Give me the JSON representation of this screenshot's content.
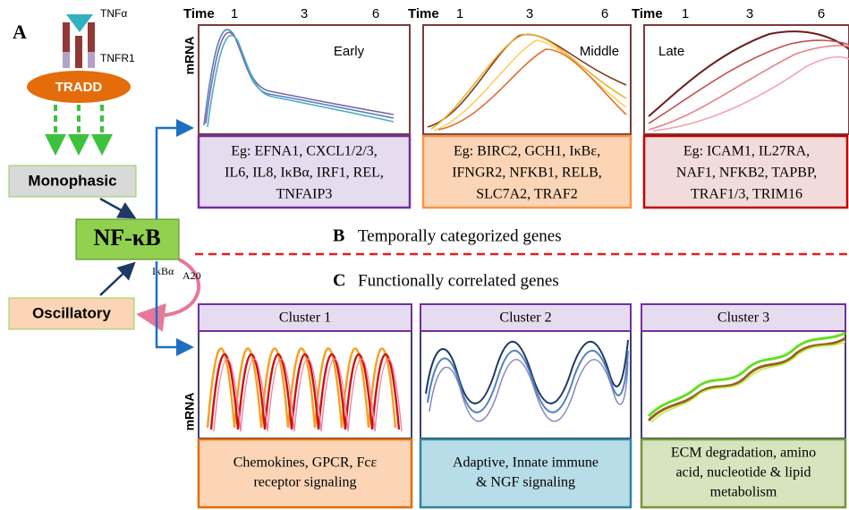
{
  "panel_a": {
    "label": "A",
    "ligand": "TNFα",
    "receptor": "TNFR1",
    "adaptor": "TRADD",
    "monophasic": "Monophasic",
    "nfkb": "NF-κB",
    "oscillatory": "Oscillatory",
    "feedback": "IκBα",
    "feedback_sub": "A20"
  },
  "temporal": {
    "label": "B",
    "title": "Temporally categorized genes",
    "time_label": "Time",
    "time_ticks": [
      1,
      3,
      6
    ],
    "y_label": "mRNA",
    "groups": [
      {
        "name": "Early",
        "genes": [
          "Eg: EFNA1, CXCL1/2/3,",
          "IL6, IL8, IκBα, IRF1, REL,",
          "TNFAIP3"
        ]
      },
      {
        "name": "Middle",
        "genes": [
          "Eg: BIRC2, GCH1, IκBε,",
          "IFNGR2, NFKB1, RELB,",
          "SLC7A2, TRAF2"
        ]
      },
      {
        "name": "Late",
        "genes": [
          "Eg: ICAM1, IL27RA,",
          "NAF1, NFKB2, TAPBP,",
          "TRAF1/3, TRIM16"
        ]
      }
    ]
  },
  "functional": {
    "label": "C",
    "title": "Functionally correlated genes",
    "y_label": "mRNA",
    "clusters": [
      {
        "name": "Cluster 1",
        "description": [
          "Chemokines, GPCR, Fcε",
          "receptor signaling"
        ]
      },
      {
        "name": "Cluster 2",
        "description": [
          "Adaptive, Innate immune",
          "& NGF signaling"
        ]
      },
      {
        "name": "Cluster 3",
        "description": [
          "ECM degradation, amino",
          "acid, nucleotide & lipid",
          "metabolism"
        ]
      }
    ]
  }
}
